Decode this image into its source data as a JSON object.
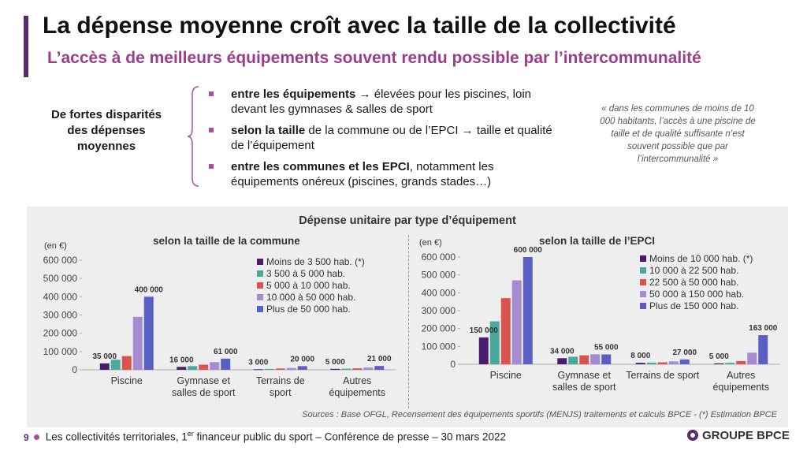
{
  "title": "La dépense moyenne croît avec la taille de la collectivité",
  "subtitle": "L’accès à de meilleurs équipements souvent rendu possible par l’intercommunalité",
  "left_label": "De fortes disparités des dépenses moyennes",
  "bullets": [
    {
      "bold": "entre les équipements",
      "rest": " → élevées pour les piscines, loin devant les gymnases & salles de sport"
    },
    {
      "bold": "selon la taille",
      "rest": " de la commune ou de l’EPCI → taille et qualité de l’équipement"
    },
    {
      "bold": "entre les communes et les EPCI",
      "rest": ", notamment les équipements onéreux (piscines, grands stades…)"
    }
  ],
  "quote": "« dans les communes de moins de 10 000 habitants, l’accès à une piscine de taille et de qualité suffisante n’est souvent possible que par l’intercommunalité »",
  "chart_panel_title": "Dépense unitaire par type d’équipement",
  "sources": "Sources : Base OFGL, Recensement des équipements sportifs (MENJS) traitements et calculs BPCE - (*) Estimation BPCE",
  "footer": {
    "page": "9",
    "text_before": "Les collectivités territoriales, 1",
    "text_sup": "er",
    "text_after": " financeur public du sport – Conférence de presse – 30 mars 2022"
  },
  "brand": "GROUPE BPCE",
  "colors": [
    "#4b1c6e",
    "#4aa99a",
    "#d9534f",
    "#a58bd0",
    "#5a5fc4"
  ],
  "chart_data": [
    {
      "type": "bar",
      "title": "selon la taille de la commune",
      "ylabel": "(en €)",
      "ylim": [
        0,
        600000
      ],
      "yticks": [
        "0",
        "100 000",
        "200 000",
        "300 000",
        "400 000",
        "500 000",
        "600 000"
      ],
      "categories": [
        "Piscine",
        "Gymnase et salles de sport",
        "Terrains de sport",
        "Autres équipements"
      ],
      "category_lines": [
        [
          "Piscine"
        ],
        [
          "Gymnase et",
          "salles de sport"
        ],
        [
          "Terrains de",
          "sport"
        ],
        [
          "Autres",
          "équipements"
        ]
      ],
      "series": [
        {
          "name": "Moins de 3 500 hab. (*)",
          "values": [
            35000,
            16000,
            3000,
            5000
          ]
        },
        {
          "name": "3 500 à 5 000 hab.",
          "values": [
            55000,
            20000,
            5000,
            6000
          ]
        },
        {
          "name": "5 000 à 10 000 hab.",
          "values": [
            75000,
            28000,
            7000,
            8000
          ]
        },
        {
          "name": "10 000 à 50 000 hab.",
          "values": [
            290000,
            42000,
            10000,
            12000
          ]
        },
        {
          "name": "Plus de 50 000 hab.",
          "values": [
            400000,
            61000,
            20000,
            21000
          ]
        }
      ],
      "data_labels": [
        {
          "cat": 0,
          "series": 0,
          "text": "35 000"
        },
        {
          "cat": 0,
          "series": 4,
          "text": "400 000"
        },
        {
          "cat": 1,
          "series": 0,
          "text": "16 000"
        },
        {
          "cat": 1,
          "series": 4,
          "text": "61 000"
        },
        {
          "cat": 2,
          "series": 0,
          "text": "3 000"
        },
        {
          "cat": 2,
          "series": 4,
          "text": "20 000"
        },
        {
          "cat": 3,
          "series": 0,
          "text": "5 000"
        },
        {
          "cat": 3,
          "series": 4,
          "text": "21 000"
        }
      ]
    },
    {
      "type": "bar",
      "title": "selon la taille de l’EPCI",
      "ylabel": "(en €)",
      "ylim": [
        0,
        600000
      ],
      "yticks": [
        "0",
        "100 000",
        "200 000",
        "300 000",
        "400 000",
        "500 000",
        "600 000"
      ],
      "categories": [
        "Piscine",
        "Gymnase et salles de sport",
        "Terrains de sport",
        "Autres équipements"
      ],
      "category_lines": [
        [
          "Piscine"
        ],
        [
          "Gymnase et",
          "salles de sport"
        ],
        [
          "Terrains de sport"
        ],
        [
          "Autres",
          "équipements"
        ]
      ],
      "series": [
        {
          "name": "Moins de 10 000 hab. (*)",
          "values": [
            150000,
            34000,
            8000,
            5000
          ]
        },
        {
          "name": "10 000 à 22 500 hab.",
          "values": [
            240000,
            42000,
            9000,
            8000
          ]
        },
        {
          "name": "22 500 à 50 000 hab.",
          "values": [
            370000,
            50000,
            11000,
            18000
          ]
        },
        {
          "name": "50 000 à 150 000 hab.",
          "values": [
            470000,
            56000,
            16000,
            65000
          ]
        },
        {
          "name": "Plus de 150 000 hab.",
          "values": [
            600000,
            55000,
            27000,
            163000
          ]
        }
      ],
      "data_labels": [
        {
          "cat": 0,
          "series": 0,
          "text": "150 000"
        },
        {
          "cat": 0,
          "series": 4,
          "text": "600 000"
        },
        {
          "cat": 1,
          "series": 0,
          "text": "34 000"
        },
        {
          "cat": 1,
          "series": 4,
          "text": "55 000"
        },
        {
          "cat": 2,
          "series": 0,
          "text": "8 000"
        },
        {
          "cat": 2,
          "series": 4,
          "text": "27 000"
        },
        {
          "cat": 3,
          "series": 0,
          "text": "5 000"
        },
        {
          "cat": 3,
          "series": 4,
          "text": "163 000"
        }
      ]
    }
  ]
}
